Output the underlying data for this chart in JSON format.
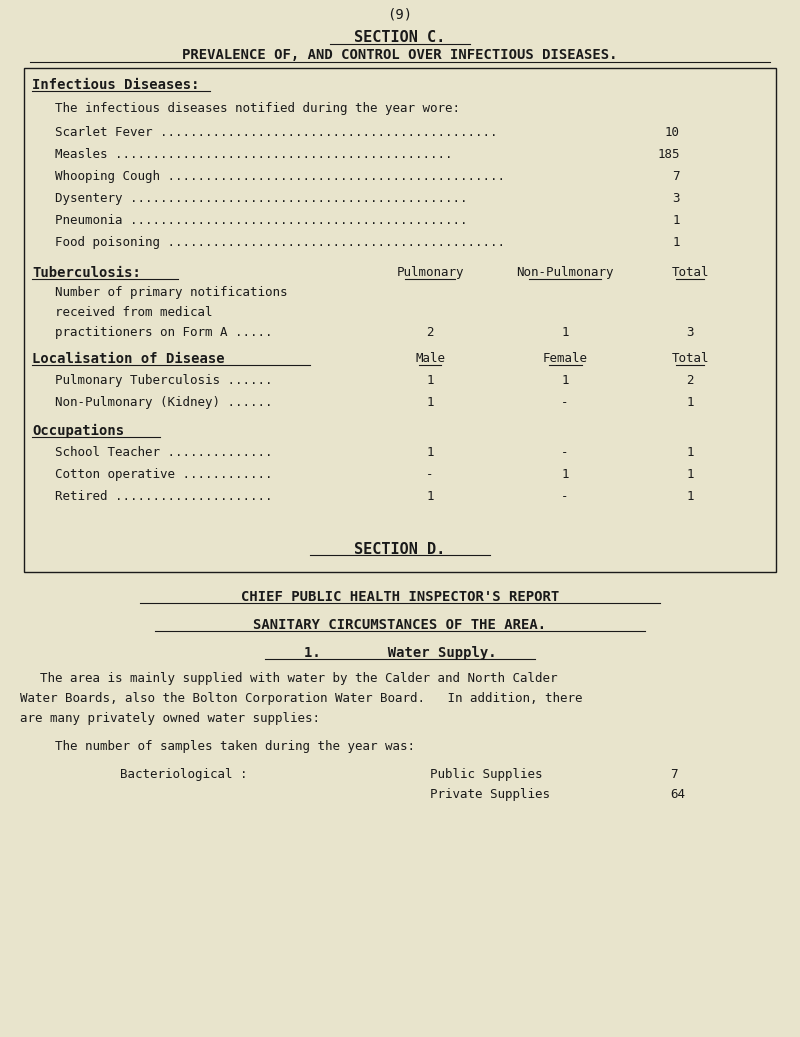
{
  "bg_color": "#e8e4cc",
  "text_color": "#1a1a1a",
  "page_number": "(9)",
  "section_c_title": "SECTION C.",
  "section_c_subtitle": "PREVALENCE OF, AND CONTROL OVER INFECTIOUS DISEASES.",
  "infectious_diseases_header": "Infectious Diseases:",
  "infectious_intro": "The infectious diseases notified during the year wore:",
  "diseases": [
    [
      "Scarlet Fever",
      "10"
    ],
    [
      "Measles",
      "185"
    ],
    [
      "Whooping Cough",
      "7"
    ],
    [
      "Dysentery",
      "3"
    ],
    [
      "Pneumonia",
      "1"
    ],
    [
      "Food poisoning",
      "1"
    ]
  ],
  "tuberculosis_header": "Tuberculosis:",
  "tb_col_headers": [
    "Pulmonary",
    "Non-Pulmonary",
    "Total"
  ],
  "tb_notifications_label": [
    "Number of primary notifications",
    "received from medical",
    "practitioners on Form A ....."
  ],
  "tb_notifications_values": [
    "2",
    "1",
    "3"
  ],
  "localisation_header": "Localisation of Disease",
  "loc_col_headers": [
    "Male",
    "Female",
    "Total"
  ],
  "localisation_rows": [
    [
      "Pulmonary Tuberculosis ......",
      "1",
      "1",
      "2"
    ],
    [
      "Non-Pulmonary (Kidney) ......",
      "1",
      "-",
      "1"
    ]
  ],
  "occupations_header": "Occupations",
  "occupations_rows": [
    [
      "School Teacher ..............",
      "1",
      "-",
      "1"
    ],
    [
      "Cotton operative ............",
      "-",
      "1",
      "1"
    ],
    [
      "Retired .....................",
      "1",
      "-",
      "1"
    ]
  ],
  "section_d_title": "SECTION D.",
  "section_d_subtitle": "CHIEF PUBLIC HEALTH INSPECTOR'S REPORT",
  "sanitary_header": "SANITARY CIRCUMSTANCES OF THE AREA.",
  "water_header": "1.        Water Supply.",
  "water_para1": "The area is mainly supplied with water by the Calder and North Calder",
  "water_para2": "Water Boards, also the Bolton Corporation Water Board.   In addition, there",
  "water_para3": "are many privately owned water supplies:",
  "samples_label": "The number of samples taken during the year was:",
  "bacterio_label": "Bacteriological :",
  "public_supplies_label": "Public Supplies",
  "public_supplies_val": "7",
  "private_supplies_label": "Private Supplies",
  "private_supplies_val": "64"
}
